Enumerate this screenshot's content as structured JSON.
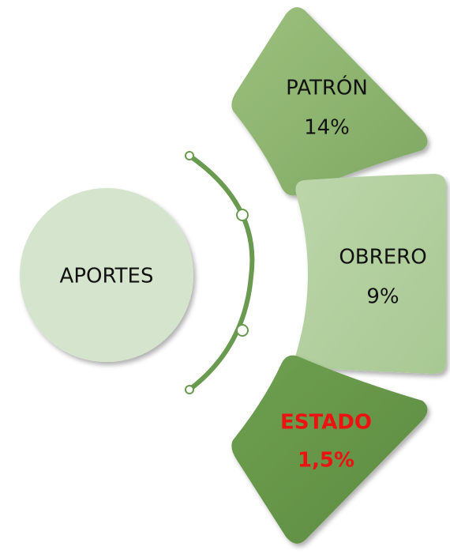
{
  "center": {
    "label": "APORTES"
  },
  "nodes": [
    {
      "label": "PATRÓN",
      "value": "14%"
    },
    {
      "label": "OBRERO",
      "value": "9%"
    },
    {
      "label": "ESTADO",
      "value": "1,5%"
    }
  ]
}
